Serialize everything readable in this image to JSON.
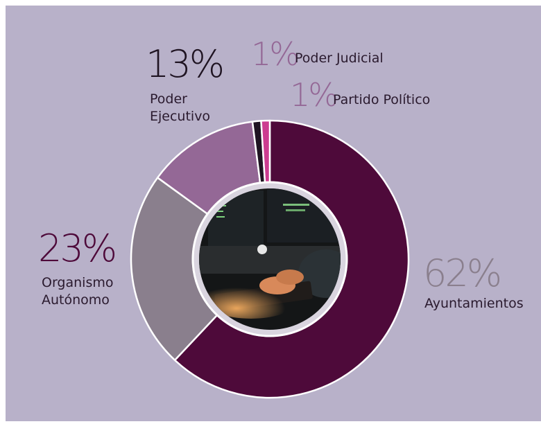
{
  "chart_data": {
    "type": "pie",
    "title": "",
    "slices": [
      {
        "label_lines": [
          "Ayuntamientos"
        ],
        "percent_text": "62%",
        "value": 62,
        "color": "#4e0a3a"
      },
      {
        "label_lines": [
          "Organismo",
          "Autónomo"
        ],
        "percent_text": "23%",
        "value": 23,
        "color": "#8a7f8d"
      },
      {
        "label_lines": [
          "Poder",
          "Ejecutivo"
        ],
        "percent_text": "13%",
        "value": 13,
        "color": "#946896"
      },
      {
        "label_lines": [
          "Partido Político"
        ],
        "percent_text": "1%",
        "value": 1,
        "color": "#1f1422"
      },
      {
        "label_lines": [
          "Poder Judicial"
        ],
        "percent_text": "1%",
        "value": 1,
        "color": "#cc3c90"
      }
    ],
    "label_colors": {
      "ayuntamientos_pct": "#8a7f8d",
      "ayuntamientos_text": "#2a1a2e",
      "organismo_pct": "#4e0a3a",
      "organismo_text": "#2a1a2e",
      "ejecutivo_pct": "#1f1422",
      "ejecutivo_text": "#2a1a2e",
      "judicial_pct": "#946896",
      "judicial_text": "#2a1a2e",
      "partido_pct": "#946896",
      "partido_text": "#2a1a2e"
    },
    "donut_style": "donut with center photo",
    "center_image": "hands-typing-on-keyboard-photo"
  }
}
